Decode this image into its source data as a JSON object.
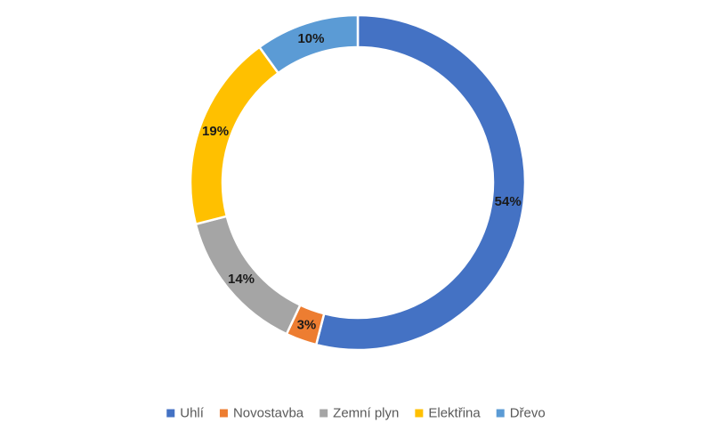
{
  "chart_data": {
    "type": "pie",
    "variant": "donut",
    "title": "",
    "start_angle_deg": 0,
    "direction": "clockwise",
    "legend_position": "bottom",
    "series": [
      {
        "name": "Uhlí",
        "value": 54,
        "label": "54%",
        "color": "#4472C4"
      },
      {
        "name": "Novostavba",
        "value": 3,
        "label": "3%",
        "color": "#ED7D31"
      },
      {
        "name": "Zemní plyn",
        "value": 14,
        "label": "14%",
        "color": "#A5A5A5"
      },
      {
        "name": "Elektřina",
        "value": 19,
        "label": "19%",
        "color": "#FFC000"
      },
      {
        "name": "Dřevo",
        "value": 10,
        "label": "10%",
        "color": "#5B9BD5"
      }
    ]
  }
}
